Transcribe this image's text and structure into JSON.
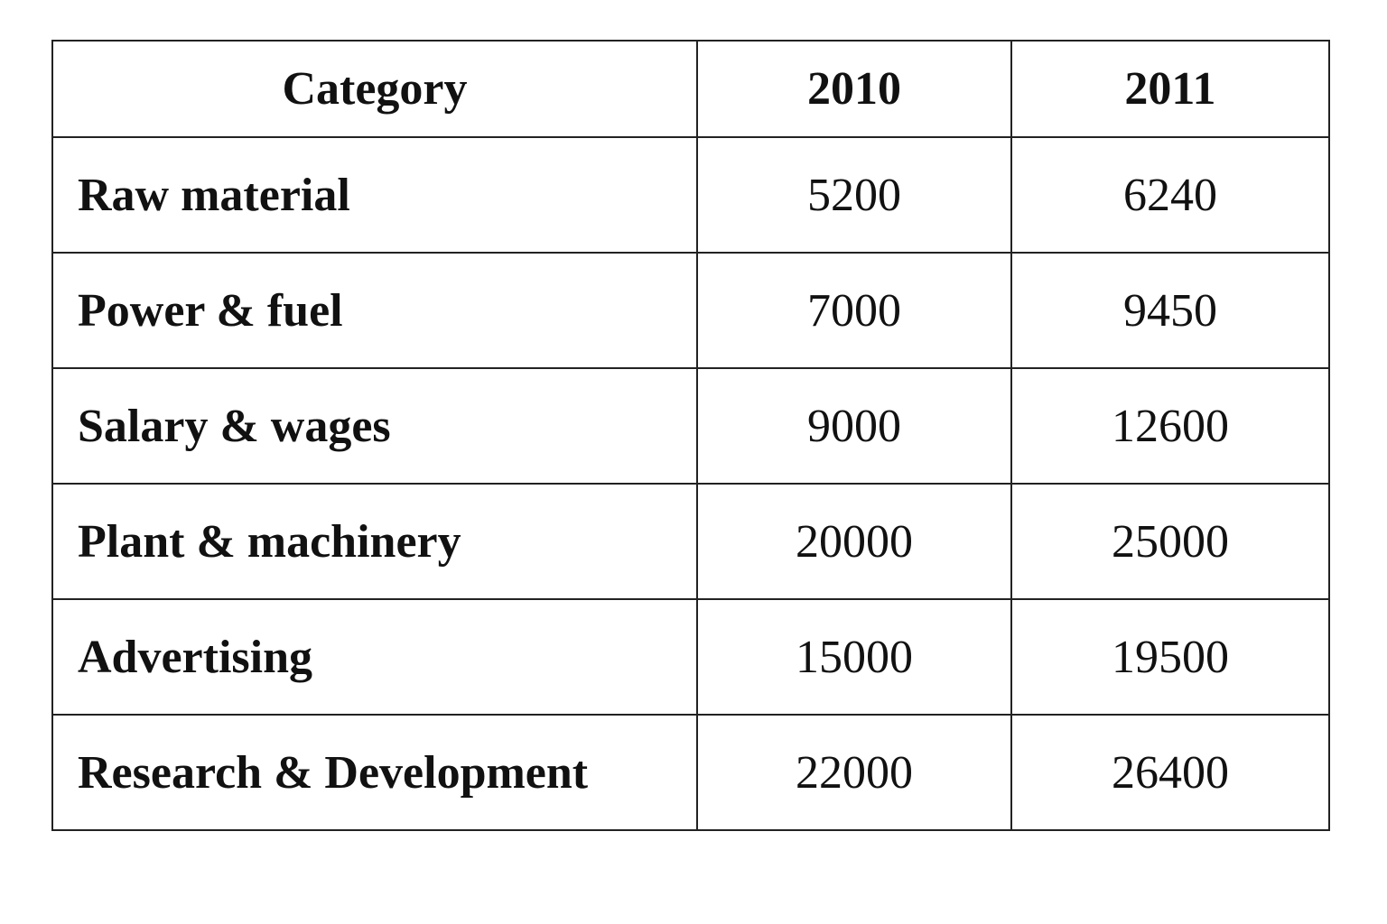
{
  "table": {
    "header": [
      "Category",
      "2010",
      "2011"
    ],
    "rows": [
      [
        "Raw material",
        5200,
        6240
      ],
      [
        "Power & fuel",
        7000,
        9450
      ],
      [
        "Salary & wages",
        9000,
        12600
      ],
      [
        "Plant & machinery",
        20000,
        25000
      ],
      [
        "Advertising",
        15000,
        19500
      ],
      [
        "Research & Development",
        22000,
        26400
      ]
    ]
  }
}
